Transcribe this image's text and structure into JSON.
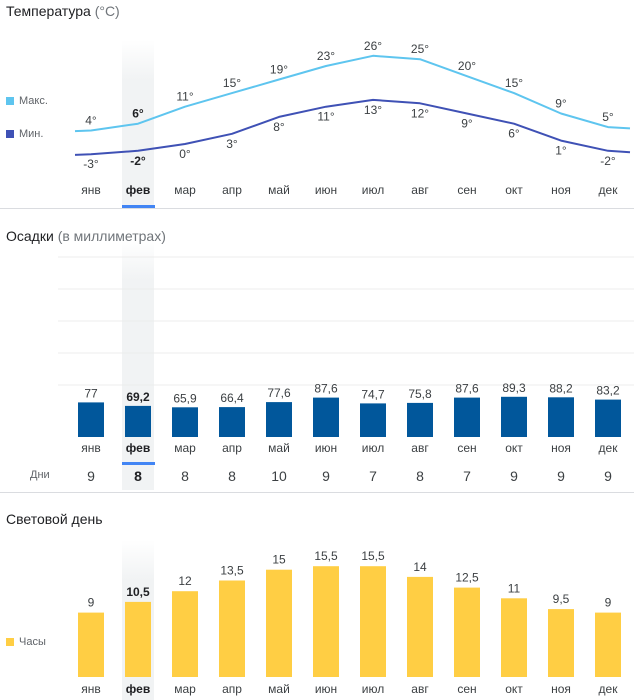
{
  "temperature": {
    "title": "Температура",
    "unit": "(°C)",
    "legend": {
      "max": "Макс.",
      "min": "Мин."
    },
    "colors": {
      "max": "#5ec5ef",
      "min": "#3f51b5"
    }
  },
  "precipitation": {
    "title": "Осадки",
    "unit": "(в миллиметрах)",
    "days_label": "Дни",
    "days": [
      "9",
      "8",
      "8",
      "8",
      "10",
      "9",
      "7",
      "8",
      "7",
      "9",
      "9",
      "9"
    ],
    "color": "#01579b"
  },
  "daylight": {
    "title": "Световой день",
    "legend": "Часы",
    "color": "#ffce44"
  },
  "selected_month_index": 1,
  "chart_data": [
    {
      "type": "line",
      "title": "Температура (°C)",
      "categories": [
        "янв",
        "фев",
        "мар",
        "апр",
        "май",
        "июн",
        "июл",
        "авг",
        "сен",
        "окт",
        "ноя",
        "дек"
      ],
      "series": [
        {
          "name": "Макс.",
          "values": [
            4,
            6,
            11,
            15,
            19,
            23,
            26,
            25,
            20,
            15,
            9,
            5
          ],
          "labels": [
            "4°",
            "6°",
            "11°",
            "15°",
            "19°",
            "23°",
            "26°",
            "25°",
            "20°",
            "15°",
            "9°",
            "5°"
          ]
        },
        {
          "name": "Мин.",
          "values": [
            -3,
            -2,
            0,
            3,
            8,
            11,
            13,
            12,
            9,
            6,
            1,
            -2
          ],
          "labels": [
            "-3°",
            "-2°",
            "0°",
            "3°",
            "8°",
            "11°",
            "13°",
            "12°",
            "9°",
            "6°",
            "1°",
            "-2°"
          ]
        }
      ],
      "ylim": [
        -5,
        28
      ]
    },
    {
      "type": "bar",
      "title": "Осадки (в миллиметрах)",
      "categories": [
        "янв",
        "фев",
        "мар",
        "апр",
        "май",
        "июн",
        "июл",
        "авг",
        "сен",
        "окт",
        "ноя",
        "дек"
      ],
      "values": [
        77,
        69.2,
        65.9,
        66.4,
        77.6,
        87.6,
        74.7,
        75.8,
        87.6,
        89.3,
        88.2,
        83.2
      ],
      "labels": [
        "77",
        "69,2",
        "65,9",
        "66,4",
        "77,6",
        "87,6",
        "74,7",
        "75,8",
        "87,6",
        "89,3",
        "88,2",
        "83,2"
      ],
      "ylim": [
        0,
        400
      ]
    },
    {
      "type": "bar",
      "title": "Световой день",
      "categories": [
        "янв",
        "фев",
        "мар",
        "апр",
        "май",
        "июн",
        "июл",
        "авг",
        "сен",
        "окт",
        "ноя",
        "дек"
      ],
      "values": [
        9,
        10.5,
        12,
        13.5,
        15,
        15.5,
        15.5,
        14,
        12.5,
        11,
        9.5,
        9
      ],
      "labels": [
        "9",
        "10,5",
        "12",
        "13,5",
        "15",
        "15,5",
        "15,5",
        "14",
        "12,5",
        "11",
        "9,5",
        "9"
      ],
      "ylim": [
        0,
        16.5
      ]
    }
  ]
}
